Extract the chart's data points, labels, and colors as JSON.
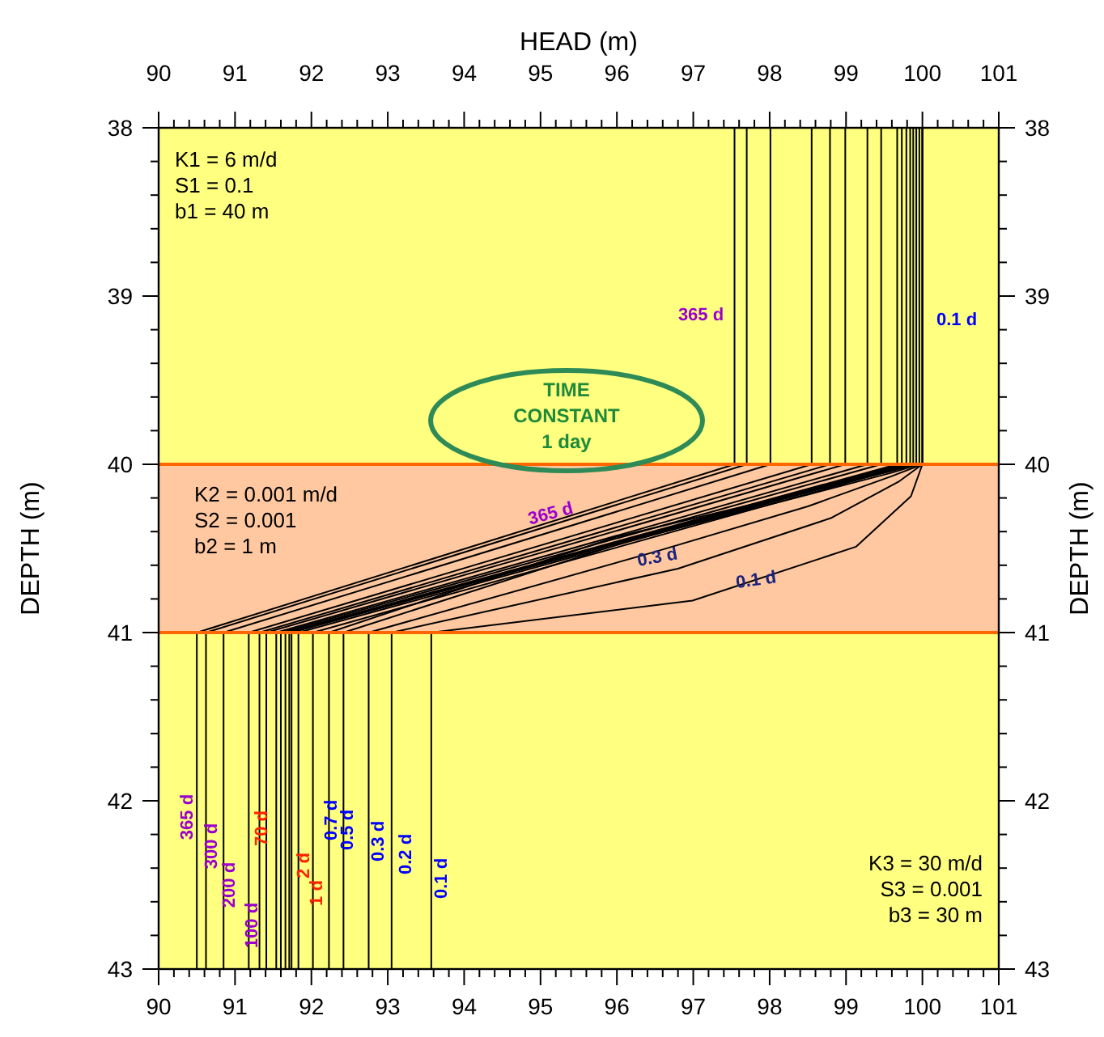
{
  "chart_data": {
    "type": "line",
    "x2label": "HEAD (m)",
    "ylabel": "DEPTH (m)",
    "y2label": "DEPTH (m)",
    "xlim": [
      90,
      101
    ],
    "x2lim": [
      90,
      101
    ],
    "ylim": [
      43,
      38
    ],
    "y2lim": [
      43,
      38
    ],
    "xticks": [
      90,
      {
        "value": 90.2,
        "label": null
      },
      {
        "value": 90.4,
        "label": null
      },
      {
        "value": 90.6,
        "label": null
      },
      {
        "value": 90.8,
        "label": null
      },
      91,
      {
        "value": 91.2,
        "label": null
      },
      {
        "value": 91.4,
        "label": null
      },
      {
        "value": 91.6,
        "label": null
      },
      {
        "value": 91.8,
        "label": null
      },
      92,
      {
        "value": 92.2,
        "label": null
      },
      {
        "value": 92.4,
        "label": null
      },
      {
        "value": 92.6,
        "label": null
      },
      {
        "value": 92.8,
        "label": null
      },
      93,
      {
        "value": 93.2,
        "label": null
      },
      {
        "value": 93.4,
        "label": null
      },
      {
        "value": 93.6,
        "label": null
      },
      {
        "value": 93.8,
        "label": null
      },
      94,
      {
        "value": 94.2,
        "label": null
      },
      {
        "value": 94.4,
        "label": null
      },
      {
        "value": 94.6,
        "label": null
      },
      {
        "value": 94.8,
        "label": null
      },
      95,
      {
        "value": 95.2,
        "label": null
      },
      {
        "value": 95.4,
        "label": null
      },
      {
        "value": 95.6,
        "label": null
      },
      {
        "value": 95.8,
        "label": null
      },
      96,
      {
        "value": 96.2,
        "label": null
      },
      {
        "value": 96.4,
        "label": null
      },
      {
        "value": 96.6,
        "label": null
      },
      {
        "value": 96.8,
        "label": null
      },
      97,
      {
        "value": 97.2,
        "label": null
      },
      {
        "value": 97.4,
        "label": null
      },
      {
        "value": 97.6,
        "label": null
      },
      {
        "value": 97.8,
        "label": null
      },
      98,
      {
        "value": 98.2,
        "label": null
      },
      {
        "value": 98.4,
        "label": null
      },
      {
        "value": 98.6,
        "label": null
      },
      {
        "value": 98.8,
        "label": null
      },
      99,
      {
        "value": 99.2,
        "label": null
      },
      {
        "value": 99.4,
        "label": null
      },
      {
        "value": 99.6,
        "label": null
      },
      {
        "value": 99.8,
        "label": null
      },
      100,
      {
        "value": 100.2,
        "label": null
      },
      {
        "value": 100.4,
        "label": null
      },
      {
        "value": 100.6,
        "label": null
      },
      {
        "value": 100.8,
        "label": null
      },
      101
    ],
    "x2ticks": [
      90,
      {
        "value": 90.2,
        "label": null
      },
      {
        "value": 90.4,
        "label": null
      },
      {
        "value": 90.6,
        "label": null
      },
      {
        "value": 90.8,
        "label": null
      },
      91,
      {
        "value": 91.2,
        "label": null
      },
      {
        "value": 91.4,
        "label": null
      },
      {
        "value": 91.6,
        "label": null
      },
      {
        "value": 91.8,
        "label": null
      },
      92,
      {
        "value": 92.2,
        "label": null
      },
      {
        "value": 92.4,
        "label": null
      },
      {
        "value": 92.6,
        "label": null
      },
      {
        "value": 92.8,
        "label": null
      },
      93,
      {
        "value": 93.2,
        "label": null
      },
      {
        "value": 93.4,
        "label": null
      },
      {
        "value": 93.6,
        "label": null
      },
      {
        "value": 93.8,
        "label": null
      },
      94,
      {
        "value": 94.2,
        "label": null
      },
      {
        "value": 94.4,
        "label": null
      },
      {
        "value": 94.6,
        "label": null
      },
      {
        "value": 94.8,
        "label": null
      },
      95,
      {
        "value": 95.2,
        "label": null
      },
      {
        "value": 95.4,
        "label": null
      },
      {
        "value": 95.6,
        "label": null
      },
      {
        "value": 95.8,
        "label": null
      },
      96,
      {
        "value": 96.2,
        "label": null
      },
      {
        "value": 96.4,
        "label": null
      },
      {
        "value": 96.6,
        "label": null
      },
      {
        "value": 96.8,
        "label": null
      },
      97,
      {
        "value": 97.2,
        "label": null
      },
      {
        "value": 97.4,
        "label": null
      },
      {
        "value": 97.6,
        "label": null
      },
      {
        "value": 97.8,
        "label": null
      },
      98,
      {
        "value": 98.2,
        "label": null
      },
      {
        "value": 98.4,
        "label": null
      },
      {
        "value": 98.6,
        "label": null
      },
      {
        "value": 98.8,
        "label": null
      },
      99,
      {
        "value": 99.2,
        "label": null
      },
      {
        "value": 99.4,
        "label": null
      },
      {
        "value": 99.6,
        "label": null
      },
      {
        "value": 99.8,
        "label": null
      },
      100,
      {
        "value": 100.2,
        "label": null
      },
      {
        "value": 100.4,
        "label": null
      },
      {
        "value": 100.6,
        "label": null
      },
      {
        "value": 100.8,
        "label": null
      },
      101
    ],
    "yticks": [
      38,
      {
        "value": 38.2,
        "label": null
      },
      {
        "value": 38.4,
        "label": null
      },
      {
        "value": 38.6,
        "label": null
      },
      {
        "value": 38.8,
        "label": null
      },
      39,
      {
        "value": 39.2,
        "label": null
      },
      {
        "value": 39.4,
        "label": null
      },
      {
        "value": 39.6,
        "label": null
      },
      {
        "value": 39.8,
        "label": null
      },
      40,
      {
        "value": 40.2,
        "label": null
      },
      {
        "value": 40.4,
        "label": null
      },
      {
        "value": 40.6,
        "label": null
      },
      {
        "value": 40.8,
        "label": null
      },
      41,
      {
        "value": 41.2,
        "label": null
      },
      {
        "value": 41.4,
        "label": null
      },
      {
        "value": 41.6,
        "label": null
      },
      {
        "value": 41.8,
        "label": null
      },
      42,
      {
        "value": 42.2,
        "label": null
      },
      {
        "value": 42.4,
        "label": null
      },
      {
        "value": 42.6,
        "label": null
      },
      {
        "value": 42.8,
        "label": null
      },
      43
    ],
    "y2ticks": [
      38,
      {
        "value": 38.2,
        "label": null
      },
      {
        "value": 38.4,
        "label": null
      },
      {
        "value": 38.6,
        "label": null
      },
      {
        "value": 38.8,
        "label": null
      },
      39,
      {
        "value": 39.2,
        "label": null
      },
      {
        "value": 39.4,
        "label": null
      },
      {
        "value": 39.6,
        "label": null
      },
      {
        "value": 39.8,
        "label": null
      },
      40,
      {
        "value": 40.2,
        "label": null
      },
      {
        "value": 40.4,
        "label": null
      },
      {
        "value": 40.6,
        "label": null
      },
      {
        "value": 40.8,
        "label": null
      },
      41,
      {
        "value": 41.2,
        "label": null
      },
      {
        "value": 41.4,
        "label": null
      },
      {
        "value": 41.6,
        "label": null
      },
      {
        "value": 41.8,
        "label": null
      },
      42,
      {
        "value": 42.2,
        "label": null
      },
      {
        "value": 42.4,
        "label": null
      },
      {
        "value": 42.6,
        "label": null
      },
      {
        "value": 42.8,
        "label": null
      },
      43
    ],
    "bands": [
      {
        "axis": "y",
        "from": 38,
        "to": 40,
        "color": "#ffff80"
      },
      {
        "axis": "y",
        "from": 40,
        "to": 41,
        "color": "#ffc8a0"
      },
      {
        "axis": "y",
        "from": 41,
        "to": 43,
        "color": "#ffff80"
      }
    ],
    "ref_lines": [
      {
        "axis": "y",
        "value": 40,
        "color": "#ff6600"
      },
      {
        "axis": "y",
        "value": 41,
        "color": "#ff6600"
      }
    ],
    "series": [
      {
        "color": "#000000",
        "x": [
          97.54,
          97.54,
          90.5,
          90.5
        ],
        "values": [
          38,
          40,
          41,
          43
        ]
      },
      {
        "color": "#000000",
        "x": [
          97.7,
          97.7,
          90.62,
          90.62
        ],
        "values": [
          38,
          40,
          41,
          43
        ]
      },
      {
        "color": "#000000",
        "x": [
          98.01,
          98.01,
          90.85,
          90.85
        ],
        "values": [
          38,
          40,
          41,
          43
        ]
      },
      {
        "color": "#000000",
        "x": [
          98.55,
          98.55,
          91.18,
          91.18
        ],
        "values": [
          38,
          40,
          41,
          43
        ]
      },
      {
        "color": "#000000",
        "x": [
          98.79,
          98.79,
          91.32,
          91.32
        ],
        "values": [
          38,
          40,
          41,
          43
        ]
      },
      {
        "color": "#000000",
        "x": [
          98.99,
          98.99,
          91.41,
          91.41
        ],
        "values": [
          38,
          40,
          41,
          43
        ]
      },
      {
        "color": "#000000",
        "x": [
          99.28,
          99.28,
          91.54,
          91.54
        ],
        "values": [
          38,
          40,
          41,
          43
        ]
      },
      {
        "color": "#000000",
        "x": [
          99.46,
          99.46,
          91.6,
          91.6
        ],
        "values": [
          38,
          40,
          41,
          43
        ]
      },
      {
        "color": "#000000",
        "x": [
          99.67,
          99.67,
          91.66,
          91.66
        ],
        "values": [
          38,
          40,
          41,
          43
        ]
      },
      {
        "color": "#000000",
        "x": [
          99.73,
          99.73,
          91.71,
          91.71
        ],
        "values": [
          38,
          40,
          41,
          43
        ]
      },
      {
        "color": "#000000",
        "x": [
          99.79,
          99.79,
          91.74,
          91.74
        ],
        "values": [
          38,
          40,
          41,
          43
        ]
      },
      {
        "color": "#000000",
        "x": [
          99.84,
          99.84,
          91.83,
          91.83
        ],
        "values": [
          38,
          40,
          41,
          43
        ]
      },
      {
        "color": "#000000",
        "x": [
          99.88,
          99.88,
          92.02,
          92.02
        ],
        "values": [
          38,
          40,
          41,
          43
        ]
      },
      {
        "color": "#000000",
        "x": [
          99.92,
          99.92,
          99.6,
          98.5,
          96,
          92.23,
          92.23
        ],
        "values": [
          38,
          40,
          40.04,
          40.16,
          40.43,
          41,
          43
        ]
      },
      {
        "color": "#000000",
        "x": [
          99.96,
          99.96,
          99.6,
          98.5,
          96.2,
          92.42,
          92.42
        ],
        "values": [
          38,
          40,
          40.05,
          40.18,
          40.45,
          41,
          43
        ]
      },
      {
        "color": "#000000",
        "x": [
          100,
          100,
          99.6,
          98.5,
          96.5,
          92.75,
          92.75
        ],
        "values": [
          38,
          40,
          40.07,
          40.25,
          40.52,
          41,
          43
        ]
      },
      {
        "color": "#000000",
        "x": [
          100,
          100,
          99.7,
          98.8,
          96.8,
          93.05,
          93.05
        ],
        "values": [
          38,
          40,
          40.1,
          40.32,
          40.62,
          41,
          43
        ]
      },
      {
        "color": "#000000",
        "x": [
          100,
          100,
          99.85,
          99.13,
          96.99,
          93.57,
          93.57
        ],
        "values": [
          38,
          40,
          40.19,
          40.49,
          40.81,
          41,
          43
        ]
      }
    ],
    "annotations": [
      "K1 = 6 m/d\nS1 = 0.1\nb1 = 40 m",
      "K2 = 0.001 m/d\nS2 = 0.001\nb2 = 1 m",
      "K3 = 30 m/d\nS3 = 0.001\nb3 = 30 m",
      "TIME\nCONSTANT\n1 day",
      "365 d",
      "0.1 d",
      "365 d",
      "0.3 d",
      "0.1 d",
      "365 d",
      "300 d",
      "200 d",
      "100 d",
      "70 d",
      "2 d",
      "1 d",
      "0.7 d",
      "0.5 d",
      "0.3 d",
      "0.2 d",
      "0.1 d"
    ]
  }
}
